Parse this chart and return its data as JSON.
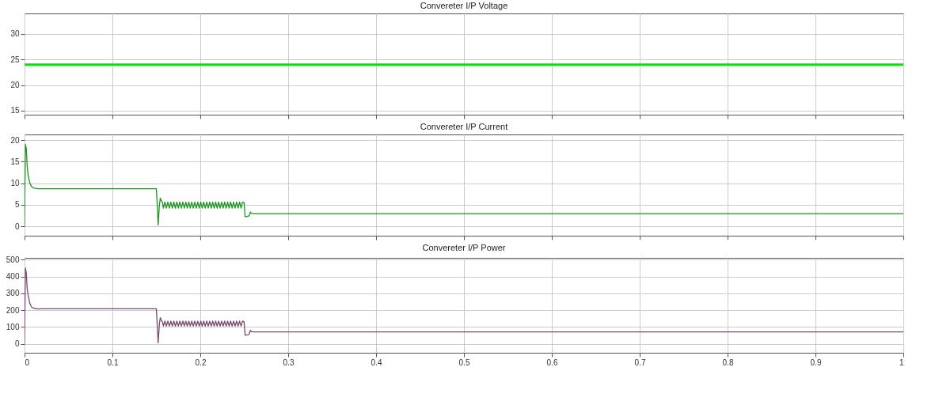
{
  "chart_data": [
    {
      "type": "line",
      "title": "Convereter I/P Voltage",
      "x": [
        0,
        1
      ],
      "series": [
        {
          "color": "#00e600",
          "values": [
            24,
            24
          ]
        }
      ],
      "xlim": [
        0,
        1
      ],
      "xticks": [
        0,
        0.1,
        0.2,
        0.3,
        0.4,
        0.5,
        0.6,
        0.7,
        0.8,
        0.9,
        1
      ],
      "ylim": [
        14.2,
        34
      ],
      "yticks": [
        15,
        20,
        25,
        30
      ],
      "grid": true,
      "tick_labels": "y"
    },
    {
      "type": "line",
      "title": "Convereter I/P Current",
      "x": [
        0,
        0.001,
        0.002,
        0.003,
        0.004,
        0.006,
        0.008,
        0.01,
        0.015,
        0.02,
        0.15,
        0.1515,
        0.152,
        0.1535,
        0.1545,
        0.1555,
        0.157,
        0.158,
        0.1597,
        0.1614,
        0.1631,
        0.1648,
        0.1665,
        0.1682,
        0.1699,
        0.1716,
        0.1733,
        0.175,
        0.1767,
        0.1784,
        0.1801,
        0.1818,
        0.1835,
        0.1852,
        0.1869,
        0.1886,
        0.1903,
        0.192,
        0.1937,
        0.1954,
        0.1971,
        0.1988,
        0.2005,
        0.2022,
        0.2039,
        0.2056,
        0.2073,
        0.209,
        0.2107,
        0.2124,
        0.2141,
        0.2158,
        0.2175,
        0.2192,
        0.2209,
        0.2226,
        0.2243,
        0.226,
        0.2277,
        0.2294,
        0.2311,
        0.2328,
        0.2345,
        0.2362,
        0.2379,
        0.2396,
        0.2413,
        0.243,
        0.2447,
        0.2464,
        0.2481,
        0.2498,
        0.251,
        0.2555,
        0.257,
        0.258,
        0.26,
        1
      ],
      "series": [
        {
          "color": "#1a961a",
          "values": [
            0,
            19,
            18,
            14,
            12,
            10,
            9.2,
            8.9,
            8.7,
            8.7,
            8.7,
            3,
            0.3,
            5,
            6.5,
            6,
            5.5,
            4.2,
            5.6,
            4.2,
            5.6,
            4.2,
            5.6,
            4.2,
            5.6,
            4.2,
            5.6,
            4.2,
            5.6,
            4.2,
            5.6,
            4.2,
            5.6,
            4.2,
            5.6,
            4.2,
            5.6,
            4.2,
            5.6,
            4.2,
            5.6,
            4.2,
            5.6,
            4.2,
            5.6,
            4.2,
            5.6,
            4.2,
            5.6,
            4.2,
            5.6,
            4.2,
            5.6,
            4.2,
            5.6,
            4.2,
            5.6,
            4.2,
            5.6,
            4.2,
            5.6,
            4.2,
            5.6,
            4.2,
            5.6,
            4.2,
            5.6,
            4.2,
            5.6,
            4.2,
            5.6,
            5.5,
            2.2,
            2.4,
            3.3,
            3,
            2.9,
            2.9
          ]
        }
      ],
      "xlim": [
        0,
        1
      ],
      "xticks": [
        0,
        0.1,
        0.2,
        0.3,
        0.4,
        0.5,
        0.6,
        0.7,
        0.8,
        0.9,
        1
      ],
      "ylim": [
        -2.2,
        21.3
      ],
      "yticks": [
        0,
        5,
        10,
        15,
        20
      ],
      "grid": true,
      "tick_labels": "y"
    },
    {
      "type": "line",
      "title": "Convereter I/P Power",
      "x": [
        0,
        0.001,
        0.002,
        0.003,
        0.004,
        0.006,
        0.008,
        0.01,
        0.015,
        0.02,
        0.15,
        0.1515,
        0.152,
        0.1535,
        0.1545,
        0.1555,
        0.157,
        0.158,
        0.1597,
        0.1614,
        0.1631,
        0.1648,
        0.1665,
        0.1682,
        0.1699,
        0.1716,
        0.1733,
        0.175,
        0.1767,
        0.1784,
        0.1801,
        0.1818,
        0.1835,
        0.1852,
        0.1869,
        0.1886,
        0.1903,
        0.192,
        0.1937,
        0.1954,
        0.1971,
        0.1988,
        0.2005,
        0.2022,
        0.2039,
        0.2056,
        0.2073,
        0.209,
        0.2107,
        0.2124,
        0.2141,
        0.2158,
        0.2175,
        0.2192,
        0.2209,
        0.2226,
        0.2243,
        0.226,
        0.2277,
        0.2294,
        0.2311,
        0.2328,
        0.2345,
        0.2362,
        0.2379,
        0.2396,
        0.2413,
        0.243,
        0.2447,
        0.2464,
        0.2481,
        0.2498,
        0.251,
        0.2555,
        0.257,
        0.258,
        0.26,
        1
      ],
      "series": [
        {
          "color": "#7a4a6e",
          "values": [
            0,
            450,
            420,
            330,
            290,
            240,
            218,
            212,
            207,
            208,
            208,
            60,
            5,
            120,
            155,
            140,
            130,
            105,
            135,
            105,
            135,
            105,
            135,
            105,
            135,
            105,
            135,
            105,
            135,
            105,
            135,
            105,
            135,
            105,
            135,
            105,
            135,
            105,
            135,
            105,
            135,
            105,
            135,
            105,
            135,
            105,
            135,
            105,
            135,
            105,
            135,
            105,
            135,
            105,
            135,
            105,
            135,
            105,
            135,
            105,
            135,
            105,
            135,
            105,
            135,
            105,
            135,
            105,
            135,
            105,
            135,
            130,
            50,
            55,
            80,
            72,
            70,
            70
          ]
        }
      ],
      "xlim": [
        0,
        1
      ],
      "xticks": [
        0,
        0.1,
        0.2,
        0.3,
        0.4,
        0.5,
        0.6,
        0.7,
        0.8,
        0.9,
        1
      ],
      "ylim": [
        -54,
        511
      ],
      "yticks": [
        0,
        100,
        200,
        300,
        400,
        500
      ],
      "grid": true
    }
  ]
}
